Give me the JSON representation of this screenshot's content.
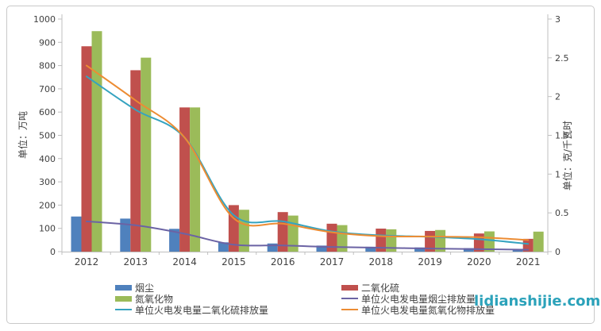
{
  "watermark": "lidianshijie.com",
  "colors": {
    "axis_line": "#bfbfbf",
    "text": "#404040",
    "watermark": "#2ba2ba",
    "bar_dust": "#4f81bd",
    "bar_so2": "#c0504d",
    "bar_nox": "#9bbb59",
    "line_dust": "#6b63a4",
    "line_so2": "#35a3c0",
    "line_nox": "#ec8c33"
  },
  "chart_data": {
    "type": "bar+line",
    "categories": [
      "2012",
      "2013",
      "2014",
      "2015",
      "2016",
      "2017",
      "2018",
      "2019",
      "2020",
      "2021"
    ],
    "left_axis": {
      "title": "单位：万吨",
      "min": 0,
      "max": 1000,
      "step": 100
    },
    "right_axis": {
      "title": "单位：克/千瓦时",
      "min": 0,
      "max": 3,
      "step": 0.5
    },
    "grid": false,
    "legend_position": "bottom",
    "bar_series": [
      {
        "name": "烟尘",
        "color": "#4f81bd",
        "axis": "left",
        "values": [
          151,
          142,
          98,
          40,
          35,
          26,
          21,
          18,
          15,
          12
        ]
      },
      {
        "name": "二氧化硫",
        "color": "#c0504d",
        "axis": "left",
        "values": [
          883,
          780,
          620,
          200,
          170,
          120,
          99,
          89,
          78,
          55
        ]
      },
      {
        "name": "氮氧化物",
        "color": "#9bbb59",
        "axis": "left",
        "values": [
          948,
          834,
          620,
          180,
          155,
          114,
          96,
          93,
          87,
          86
        ]
      }
    ],
    "line_series": [
      {
        "name": "单位火电发电量烟尘排放量",
        "color": "#6b63a4",
        "axis": "right",
        "values": [
          0.39,
          0.34,
          0.23,
          0.09,
          0.08,
          0.06,
          0.05,
          0.04,
          0.032,
          0.025
        ]
      },
      {
        "name": "单位火电发电量二氧化硫排放量",
        "color": "#35a3c0",
        "axis": "right",
        "values": [
          2.26,
          1.83,
          1.47,
          0.47,
          0.39,
          0.26,
          0.21,
          0.19,
          0.16,
          0.1
        ]
      },
      {
        "name": "单位火电发电量氮氧化物排放量",
        "color": "#ec8c33",
        "axis": "right",
        "values": [
          2.4,
          1.95,
          1.47,
          0.43,
          0.36,
          0.25,
          0.2,
          0.195,
          0.185,
          0.15
        ]
      }
    ],
    "legend": {
      "columns": [
        [
          {
            "label": "烟尘",
            "swatch": "bar",
            "color": "#4f81bd"
          },
          {
            "label": "氮氧化物",
            "swatch": "bar",
            "color": "#9bbb59"
          },
          {
            "label": "单位火电发电量二氧化硫排放量",
            "swatch": "line",
            "color": "#35a3c0"
          }
        ],
        [
          {
            "label": "二氧化硫",
            "swatch": "bar",
            "color": "#c0504d"
          },
          {
            "label": "单位火电发电量烟尘排放量",
            "swatch": "line",
            "color": "#6b63a4"
          },
          {
            "label": "单位火电发电量氮氧化物排放量",
            "swatch": "line",
            "color": "#ec8c33"
          }
        ]
      ]
    }
  }
}
